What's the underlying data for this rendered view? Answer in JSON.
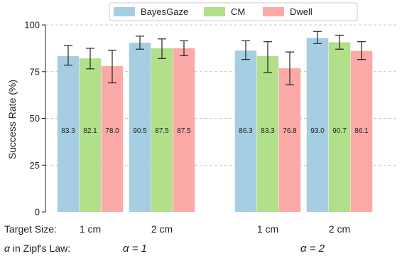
{
  "chart_data": {
    "type": "bar",
    "ylabel": "Success Rate (%)",
    "ylim": [
      0,
      100
    ],
    "yticks": [
      0,
      25,
      50,
      75,
      100
    ],
    "grid": true,
    "legend_placement": "top-center",
    "groups": [
      {
        "target_size": "1 cm",
        "alpha": "α = 1"
      },
      {
        "target_size": "2 cm",
        "alpha": "α = 1"
      },
      {
        "target_size": "1 cm",
        "alpha": "α = 2"
      },
      {
        "target_size": "2 cm",
        "alpha": "α = 2"
      }
    ],
    "row_labels": {
      "target_size": "Target Size:",
      "alpha": "α in Zipf's Law:"
    },
    "alpha_labels": [
      "α = 1",
      "α = 2"
    ],
    "series": [
      {
        "name": "BayesGaze",
        "color": "#a6cee3",
        "values": [
          83.3,
          90.5,
          86.3,
          93.0
        ],
        "value_labels": [
          "83.3",
          "90.5",
          "86.3",
          "93.0"
        ],
        "err_low": [
          78.5,
          87.0,
          81.5,
          90.0
        ],
        "err_high": [
          89.0,
          94.0,
          91.5,
          96.5
        ]
      },
      {
        "name": "CM",
        "color": "#b2df8a",
        "values": [
          82.1,
          87.5,
          83.3,
          90.7
        ],
        "value_labels": [
          "82.1",
          "87.5",
          "83.3",
          "90.7"
        ],
        "err_low": [
          76.5,
          82.0,
          74.5,
          87.0
        ],
        "err_high": [
          87.5,
          92.5,
          91.0,
          94.5
        ]
      },
      {
        "name": "Dwell",
        "color": "#fbaaa7",
        "values": [
          78.0,
          87.5,
          76.8,
          86.1
        ],
        "value_labels": [
          "78.0",
          "87.5",
          "76.8",
          "86.1"
        ],
        "err_low": [
          69.0,
          83.5,
          68.0,
          81.5
        ],
        "err_high": [
          86.5,
          91.5,
          85.5,
          91.0
        ]
      }
    ]
  }
}
